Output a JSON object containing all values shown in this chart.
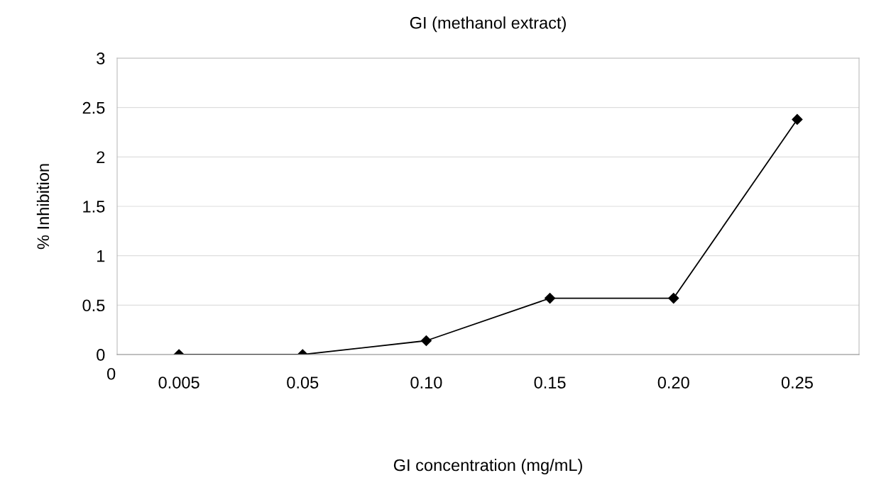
{
  "chart_data": {
    "type": "line",
    "title": "GI (methanol extract)",
    "xlabel": "GI concentration (mg/mL)",
    "ylabel": "% Inhibition",
    "categories": [
      "0.005",
      "0.05",
      "0.10",
      "0.15",
      "0.20",
      "0.25"
    ],
    "series": [
      {
        "color": "#000000",
        "values": [
          0,
          0,
          0.14,
          0.57,
          0.57,
          2.38
        ]
      }
    ],
    "ylim": [
      0,
      3
    ],
    "yticks": [
      0,
      {
        "value": 0.5,
        "label": "0.5"
      },
      1,
      {
        "value": 1.5,
        "label": "1.5"
      },
      2,
      {
        "value": 2.5,
        "label": "2.5"
      },
      3
    ],
    "grid": "y",
    "marker": "diamond",
    "line_style": "solid",
    "annotations": [
      "0"
    ]
  }
}
